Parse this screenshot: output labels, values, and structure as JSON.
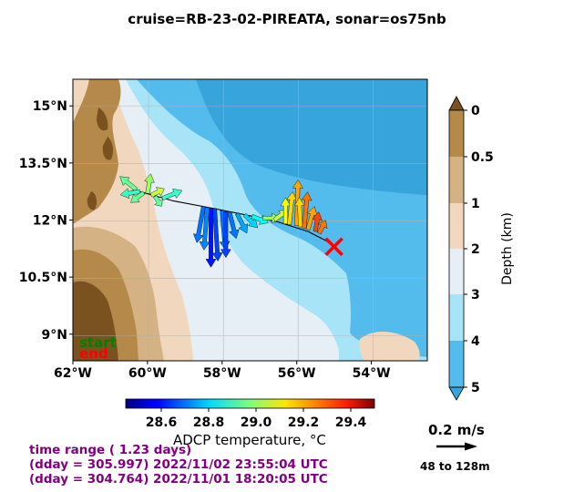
{
  "title": "cruise=RB-23-02-PIREATA,   sonar=os75nb",
  "info_lines": [
    "time range ( 1.23 days)",
    "(dday = 305.997) 2022/11/02 23:55:04 UTC",
    "(dday = 304.764) 2022/11/01 18:20:05 UTC"
  ],
  "legend_labels": {
    "start": "start",
    "end": "end"
  },
  "colors": {
    "start": "#008000",
    "end": "#ff0000",
    "info": "#800080",
    "marker": "#ff0000"
  },
  "scale": {
    "speed_label": "0.2 m/s",
    "depth_label": "48 to 128m"
  },
  "chart_data": {
    "type": "map-quiver",
    "xlim": [
      -62,
      -52.5
    ],
    "ylim": [
      8.3,
      15.7
    ],
    "x_ticks": [
      -62,
      -60,
      -58,
      -56,
      -54
    ],
    "x_tick_labels": [
      "62°W",
      "60°W",
      "58°W",
      "56°W",
      "54°W"
    ],
    "y_ticks": [
      9,
      10.5,
      12,
      13.5,
      15
    ],
    "y_tick_labels": [
      "9°N",
      "10.5°N",
      "12°N",
      "13.5°N",
      "15°N"
    ],
    "grid": true,
    "depth_colorbar": {
      "label": "Depth (km)",
      "tick_labels": [
        "0",
        "0.5",
        "1",
        "2",
        "3",
        "4",
        "5"
      ],
      "colors": [
        "#7a5220",
        "#b5894a",
        "#d4b283",
        "#f0d7bd",
        "#e6eff5",
        "#a8e4f8",
        "#54bcec",
        "#38a4dc"
      ]
    },
    "temperature_colorbar": {
      "label": "ADCP temperature, °C",
      "range": [
        28.45,
        29.5
      ],
      "ticks": [
        28.6,
        28.8,
        29.0,
        29.2,
        29.4
      ],
      "tick_labels": [
        "28.6",
        "28.8",
        "29.0",
        "29.2",
        "29.4"
      ]
    },
    "ship_track": [
      [
        -60.4,
        12.8
      ],
      [
        -59.3,
        12.5
      ],
      [
        -58.2,
        12.3
      ],
      [
        -57.2,
        12.1
      ],
      [
        -56.5,
        11.95
      ],
      [
        -55.7,
        11.7
      ],
      [
        -55.2,
        11.45
      ],
      [
        -55.0,
        11.3
      ]
    ],
    "end_marker": [
      -55.0,
      11.3
    ],
    "vectors": [
      {
        "lon": -60.3,
        "lat": 12.8,
        "u": -0.25,
        "v": 0.2,
        "temp": 28.95
      },
      {
        "lon": -60.2,
        "lat": 12.75,
        "u": -0.3,
        "v": -0.05,
        "temp": 28.9
      },
      {
        "lon": -60.1,
        "lat": 12.72,
        "u": -0.2,
        "v": -0.15,
        "temp": 28.95
      },
      {
        "lon": -60.0,
        "lat": 12.7,
        "u": 0.05,
        "v": 0.3,
        "temp": 29.0
      },
      {
        "lon": -59.9,
        "lat": 12.65,
        "u": 0.2,
        "v": 0.1,
        "temp": 29.05
      },
      {
        "lon": -59.8,
        "lat": 12.62,
        "u": 0.1,
        "v": -0.15,
        "temp": 28.95
      },
      {
        "lon": -59.6,
        "lat": 12.57,
        "u": 0.3,
        "v": 0.12,
        "temp": 28.9
      },
      {
        "lon": -58.5,
        "lat": 12.35,
        "u": -0.1,
        "v": -0.55,
        "temp": 28.7
      },
      {
        "lon": -58.4,
        "lat": 12.33,
        "u": -0.05,
        "v": -0.65,
        "temp": 28.72
      },
      {
        "lon": -58.3,
        "lat": 12.31,
        "u": 0.0,
        "v": -0.9,
        "temp": 28.6
      },
      {
        "lon": -58.2,
        "lat": 12.3,
        "u": 0.05,
        "v": -0.8,
        "temp": 28.65
      },
      {
        "lon": -58.0,
        "lat": 12.25,
        "u": 0.05,
        "v": -0.6,
        "temp": 28.7
      },
      {
        "lon": -57.9,
        "lat": 12.22,
        "u": 0.0,
        "v": -0.7,
        "temp": 28.65
      },
      {
        "lon": -57.8,
        "lat": 12.2,
        "u": 0.1,
        "v": -0.4,
        "temp": 28.7
      },
      {
        "lon": -57.6,
        "lat": 12.17,
        "u": 0.15,
        "v": -0.3,
        "temp": 28.75
      },
      {
        "lon": -57.4,
        "lat": 12.14,
        "u": 0.2,
        "v": -0.2,
        "temp": 28.8
      },
      {
        "lon": -57.2,
        "lat": 12.1,
        "u": 0.25,
        "v": -0.1,
        "temp": 28.85
      },
      {
        "lon": -56.9,
        "lat": 12.05,
        "u": 0.25,
        "v": 0.0,
        "temp": 29.0
      },
      {
        "lon": -56.6,
        "lat": 12.0,
        "u": 0.2,
        "v": 0.15,
        "temp": 29.05
      },
      {
        "lon": -56.3,
        "lat": 11.9,
        "u": 0.0,
        "v": 0.4,
        "temp": 29.1
      },
      {
        "lon": -56.2,
        "lat": 11.88,
        "u": 0.05,
        "v": 0.5,
        "temp": 29.15
      },
      {
        "lon": -56.0,
        "lat": 11.85,
        "u": 0.02,
        "v": 0.7,
        "temp": 29.2
      },
      {
        "lon": -55.9,
        "lat": 11.82,
        "u": -0.02,
        "v": 0.45,
        "temp": 29.15
      },
      {
        "lon": -55.8,
        "lat": 11.79,
        "u": 0.05,
        "v": 0.55,
        "temp": 29.25
      },
      {
        "lon": -55.7,
        "lat": 11.75,
        "u": 0.1,
        "v": 0.35,
        "temp": 29.2
      },
      {
        "lon": -55.5,
        "lat": 11.7,
        "u": 0.05,
        "v": 0.3,
        "temp": 29.3
      },
      {
        "lon": -55.4,
        "lat": 11.65,
        "u": 0.1,
        "v": 0.2,
        "temp": 29.25
      }
    ]
  }
}
